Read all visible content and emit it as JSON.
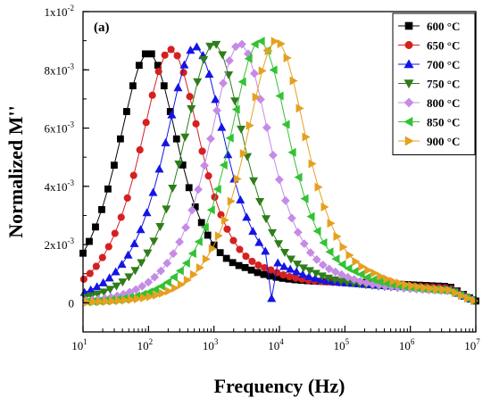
{
  "chart_data": {
    "type": "scatter",
    "panel_label": "(a)",
    "xlabel": "Frequency (Hz)",
    "ylabel": "Normalized M''",
    "x_scale": "log",
    "xlim": [
      10,
      10000000
    ],
    "ylim": [
      -0.001,
      0.01
    ],
    "x_ticks": [
      {
        "value": 10,
        "base": "10",
        "exp": "1"
      },
      {
        "value": 100,
        "base": "10",
        "exp": "2"
      },
      {
        "value": 1000,
        "base": "10",
        "exp": "3"
      },
      {
        "value": 10000,
        "base": "10",
        "exp": "4"
      },
      {
        "value": 100000,
        "base": "10",
        "exp": "5"
      },
      {
        "value": 1000000,
        "base": "10",
        "exp": "6"
      },
      {
        "value": 10000000,
        "base": "10",
        "exp": "7"
      }
    ],
    "y_ticks": [
      {
        "value": 0,
        "base": "0",
        "exp": ""
      },
      {
        "value": 0.002,
        "base": "2x10",
        "exp": "-3"
      },
      {
        "value": 0.004,
        "base": "4x10",
        "exp": "-3"
      },
      {
        "value": 0.006,
        "base": "6x10",
        "exp": "-3"
      },
      {
        "value": 0.008,
        "base": "8x10",
        "exp": "-3"
      },
      {
        "value": 0.01,
        "base": "1x10",
        "exp": "-2"
      }
    ],
    "legend_position": "top-right",
    "series": [
      {
        "name": "600 °C",
        "color": "#000000",
        "marker": "square",
        "peak_freq": 100,
        "peak": 0.0086,
        "hf_tail": 0.0007,
        "dip": null
      },
      {
        "name": "650 °C",
        "color": "#d62020",
        "marker": "circle",
        "peak_freq": 220,
        "peak": 0.0087,
        "hf_tail": 0.00065,
        "dip": null
      },
      {
        "name": "700 °C",
        "color": "#1414e6",
        "marker": "triangle-up",
        "peak_freq": 520,
        "peak": 0.0088,
        "hf_tail": 0.0006,
        "dip": {
          "freq": 7800,
          "value": 0.00015
        }
      },
      {
        "name": "750 °C",
        "color": "#2e7d1a",
        "marker": "triangle-down",
        "peak_freq": 1000,
        "peak": 0.0089,
        "hf_tail": 0.00055,
        "dip": null
      },
      {
        "name": "800 °C",
        "color": "#c58be6",
        "marker": "diamond",
        "peak_freq": 2500,
        "peak": 0.0089,
        "hf_tail": 0.0005,
        "dip": null
      },
      {
        "name": "850 °C",
        "color": "#33c233",
        "marker": "triangle-left",
        "peak_freq": 5000,
        "peak": 0.009,
        "hf_tail": 0.0005,
        "dip": null
      },
      {
        "name": "900 °C",
        "color": "#e6a020",
        "marker": "triangle-right",
        "peak_freq": 9000,
        "peak": 0.009,
        "hf_tail": 0.0005,
        "dip": null
      }
    ]
  }
}
